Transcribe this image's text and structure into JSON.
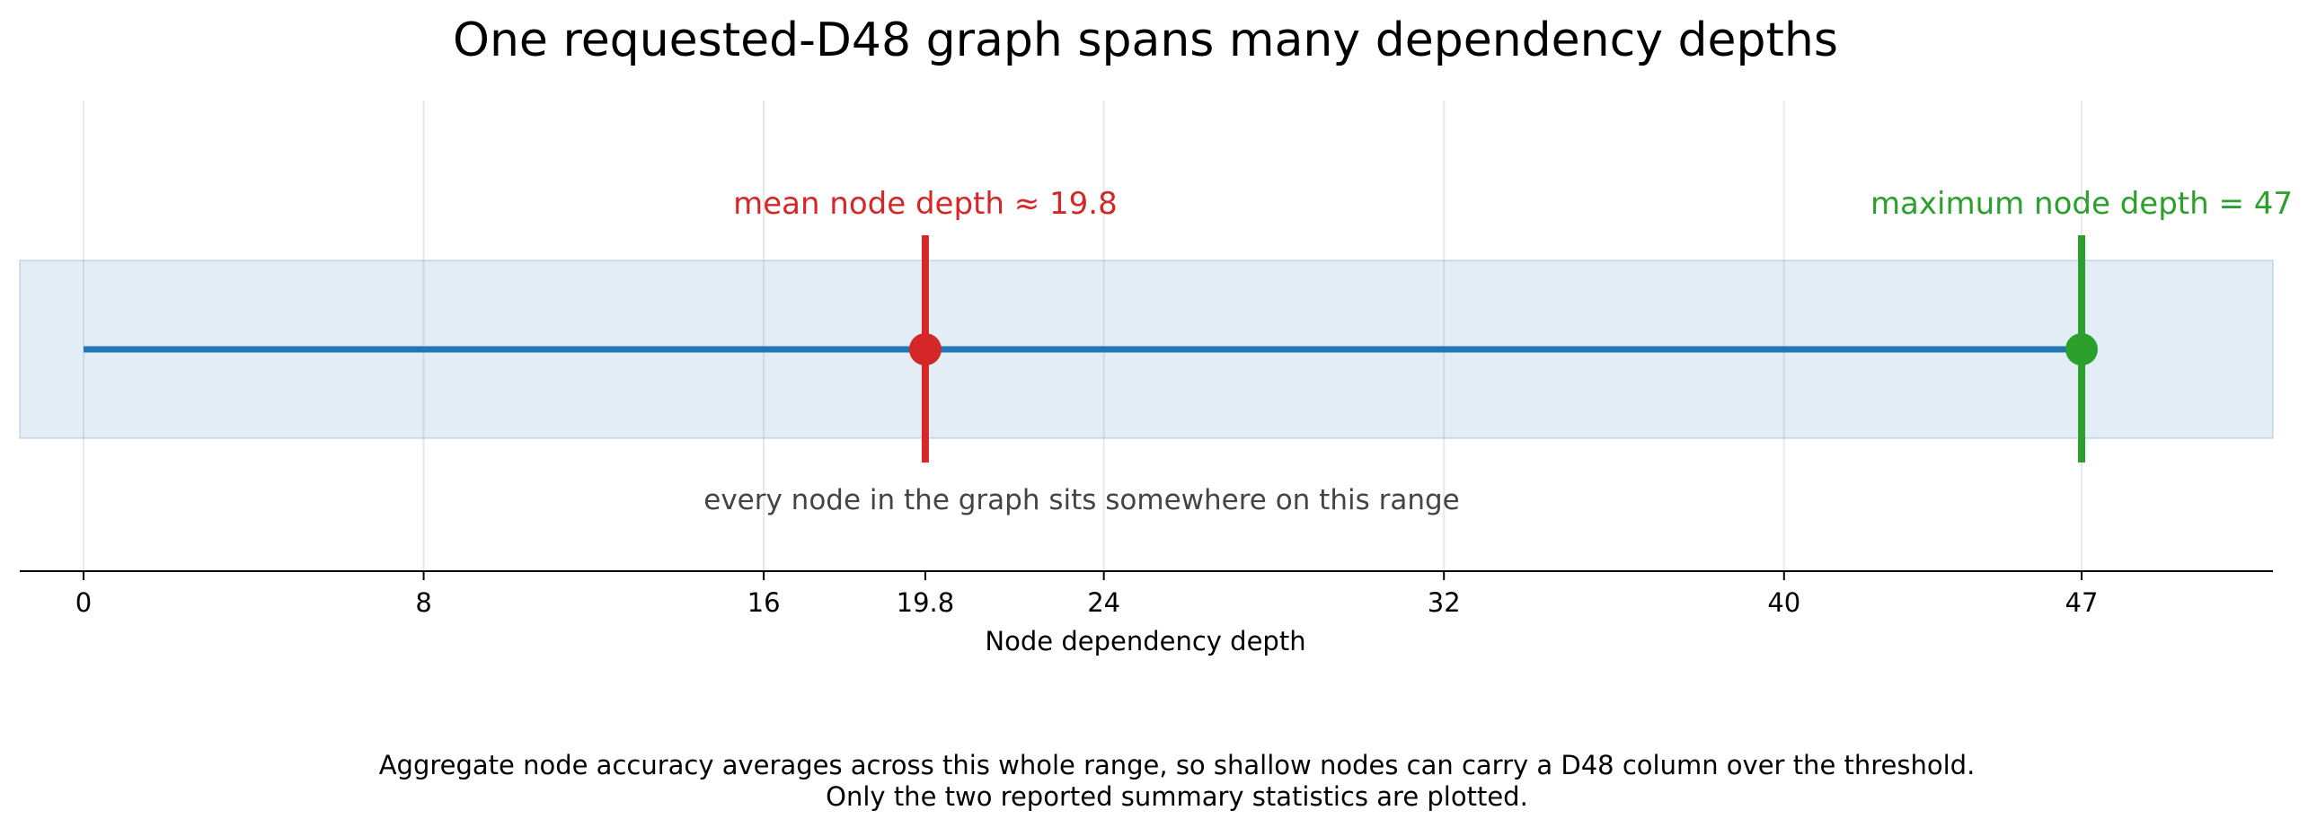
{
  "chart_data": {
    "type": "line",
    "title": "One requested-D48 graph spans many dependency depths",
    "xlabel": "Node dependency depth",
    "ylabel": "",
    "xlim": [
      -2.5,
      50.6
    ],
    "grid": true,
    "x_ticks": [
      0,
      8,
      16,
      19.8,
      24,
      32,
      40,
      47
    ],
    "x_tick_labels": [
      "0",
      "8",
      "16",
      "19.8",
      "24",
      "32",
      "40",
      "47"
    ],
    "range": {
      "start": 0,
      "end": 47
    },
    "points": [
      {
        "name": "mean node depth",
        "x": 19.8,
        "color": "#d62728",
        "label": "mean node depth ≈ 19.8"
      },
      {
        "name": "maximum node depth",
        "x": 47,
        "color": "#2ca02c",
        "label": "maximum node depth = 47"
      }
    ],
    "range_note": "every node in the graph sits somewhere on this range",
    "caption": [
      "Aggregate node accuracy averages across this whole range, so shallow nodes can carry a D48 column over the threshold.",
      "Only the two reported summary statistics are plotted."
    ]
  },
  "colors": {
    "range_line": "#1f77b4",
    "band_fill": "#1f77b4",
    "grid": "#e8e8e8",
    "axis": "#000000"
  }
}
